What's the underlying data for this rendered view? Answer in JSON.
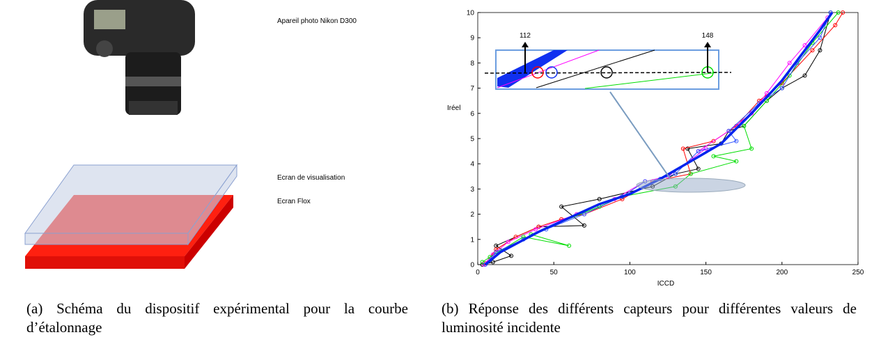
{
  "panel_a": {
    "camera_label": "Apareil photo Nikon D300",
    "screen1_label": "Ecran de visualisation",
    "screen2_label": "Ecran Flox",
    "caption": "(a) Schéma du dispositif expérimental pour la courbe d’étalonnage"
  },
  "caption_b": "(b) Réponse des différents capteurs pour différentes valeurs de luminosité incidente",
  "chart_data": {
    "type": "line",
    "xlabel": "ICCD",
    "ylabel": "Iréel",
    "xlim": [
      0,
      250
    ],
    "ylim": [
      0,
      10
    ],
    "xticks": [
      0,
      50,
      100,
      150,
      200,
      250
    ],
    "yticks": [
      0,
      1,
      2,
      3,
      4,
      5,
      6,
      7,
      8,
      9,
      10
    ],
    "annotations": [
      "112",
      "148"
    ],
    "series": [
      {
        "color": "#000000",
        "markers": true,
        "width": 1,
        "x": [
          3,
          10,
          22,
          12,
          40,
          70,
          55,
          80,
          115,
          130,
          145,
          138,
          160,
          165,
          175,
          190,
          200,
          215,
          225,
          232
        ],
        "values": [
          0,
          0.1,
          0.35,
          0.75,
          1.5,
          1.55,
          2.3,
          2.6,
          3.1,
          3.6,
          3.8,
          4.6,
          4.8,
          5.3,
          5.5,
          6.5,
          7,
          7.5,
          8.5,
          10
        ]
      },
      {
        "color": "#ff0000",
        "markers": true,
        "width": 1,
        "x": [
          5,
          12,
          25,
          40,
          55,
          70,
          95,
          115,
          140,
          135,
          155,
          170,
          185,
          200,
          220,
          235,
          240
        ],
        "values": [
          0.05,
          0.6,
          1.1,
          1.5,
          1.8,
          2,
          2.6,
          3.3,
          3.6,
          4.6,
          4.9,
          5.5,
          6.5,
          7.2,
          8.5,
          9.5,
          10
        ]
      },
      {
        "color": "#ff00ff",
        "markers": true,
        "width": 1,
        "x": [
          4,
          10,
          20,
          38,
          65,
          90,
          110,
          125,
          150,
          145,
          165,
          180,
          190,
          205,
          215,
          230
        ],
        "values": [
          0,
          0.4,
          0.9,
          1.4,
          2,
          2.6,
          3.3,
          3.5,
          4.6,
          4.5,
          5.3,
          6,
          6.8,
          8,
          8.7,
          9.8
        ]
      },
      {
        "color": "#00dd00",
        "markers": true,
        "width": 1,
        "x": [
          3,
          8,
          30,
          60,
          35,
          80,
          95,
          130,
          140,
          170,
          155,
          180,
          175,
          190,
          205,
          220,
          237
        ],
        "values": [
          0.1,
          0.3,
          1.1,
          0.75,
          1.2,
          2.3,
          2.7,
          3.1,
          3.6,
          4.1,
          4.3,
          4.6,
          5.5,
          6.5,
          7.5,
          8.8,
          10
        ]
      },
      {
        "color": "#3355ff",
        "markers": true,
        "width": 1,
        "x": [
          5,
          12,
          30,
          45,
          70,
          95,
          110,
          120,
          130,
          145,
          170,
          165,
          185,
          200,
          210,
          225,
          232
        ],
        "values": [
          0,
          0.5,
          1,
          1.4,
          2,
          2.7,
          3.3,
          3.4,
          3.6,
          4.5,
          4.9,
          5.3,
          6.4,
          7,
          8,
          9,
          10
        ]
      },
      {
        "color": "#0022ee",
        "markers": false,
        "width": 3.5,
        "x": [
          5,
          15,
          40,
          80,
          100,
          120,
          140,
          160,
          180,
          200,
          215,
          225,
          233
        ],
        "values": [
          0,
          0.5,
          1.3,
          2.4,
          2.8,
          3.4,
          4.1,
          4.8,
          6,
          7.3,
          8.5,
          9.3,
          10
        ]
      }
    ]
  }
}
